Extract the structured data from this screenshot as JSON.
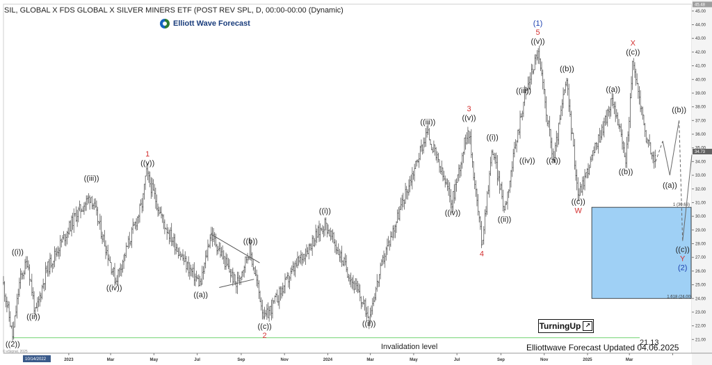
{
  "header": {
    "title": "SIL, GLOBAL X FDS GLOBAL X SILVER MINERS ETF (POST REV SPL, D, 00:00-00:00 (Dynamic)",
    "logo_text": "Elliott Wave Forecast"
  },
  "footer": {
    "updated": "Elliottwave Forecast Updated 04.06.2025",
    "brand": "TurningUp",
    "invalidation_label": "Invalidation level",
    "invalidation_value": "21.13",
    "copyright": "© eSignal, 2025",
    "cursor_date": "10/14/2022"
  },
  "chart_data": {
    "type": "candlestick",
    "title": "SIL, GLOBAL X FDS GLOBAL X SILVER MINERS ETF (POST REV SPL, D, 00:00-00:00 (Dynamic)",
    "ylim": [
      20.0,
      45.5
    ],
    "y_ticks": [
      21.0,
      22.0,
      23.0,
      24.0,
      25.0,
      26.0,
      27.0,
      28.0,
      29.0,
      30.0,
      31.0,
      32.0,
      33.0,
      34.0,
      35.0,
      36.0,
      37.0,
      38.0,
      39.0,
      40.0,
      41.0,
      42.0,
      43.0,
      44.0,
      45.0
    ],
    "last_price": "34.73",
    "top_price": "45.48",
    "x_ticks": [
      {
        "date": "2023-01-01",
        "label": "2023"
      },
      {
        "date": "2023-03-01",
        "label": "Mar"
      },
      {
        "date": "2023-05-01",
        "label": "May"
      },
      {
        "date": "2023-07-01",
        "label": "Jul"
      },
      {
        "date": "2023-09-01",
        "label": "Sep"
      },
      {
        "date": "2023-11-01",
        "label": "Nov"
      },
      {
        "date": "2024-01-01",
        "label": "2024"
      },
      {
        "date": "2024-03-01",
        "label": "Mar"
      },
      {
        "date": "2024-05-01",
        "label": "May"
      },
      {
        "date": "2024-07-01",
        "label": "Jul"
      },
      {
        "date": "2024-09-01",
        "label": "Sep"
      },
      {
        "date": "2024-11-01",
        "label": "Nov"
      },
      {
        "date": "2025-01-01",
        "label": "2025"
      },
      {
        "date": "2025-03-01",
        "label": "Mar"
      },
      {
        "date": "2025-05-01",
        "label": ""
      }
    ],
    "x_range": [
      "2022-10-01",
      "2025-05-28"
    ],
    "price_path": [
      [
        "2022-10-01",
        25.0
      ],
      [
        "2022-10-14",
        21.2
      ],
      [
        "2022-10-24",
        25.3
      ],
      [
        "2022-11-04",
        26.8
      ],
      [
        "2022-11-15",
        22.8
      ],
      [
        "2022-11-30",
        26.0
      ],
      [
        "2023-01-10",
        30.0
      ],
      [
        "2023-02-01",
        31.5
      ],
      [
        "2023-03-08",
        25.3
      ],
      [
        "2023-04-15",
        31.0
      ],
      [
        "2023-04-20",
        33.2
      ],
      [
        "2023-05-15",
        29.5
      ],
      [
        "2023-06-15",
        26.5
      ],
      [
        "2023-07-06",
        25.0
      ],
      [
        "2023-07-20",
        28.8
      ],
      [
        "2023-08-25",
        25.0
      ],
      [
        "2023-09-13",
        27.6
      ],
      [
        "2023-10-04",
        22.5
      ],
      [
        "2023-11-22",
        26.8
      ],
      [
        "2023-12-28",
        29.5
      ],
      [
        "2024-02-28",
        22.7
      ],
      [
        "2024-03-20",
        27.0
      ],
      [
        "2024-04-12",
        30.5
      ],
      [
        "2024-05-20",
        36.2
      ],
      [
        "2024-06-24",
        31.0
      ],
      [
        "2024-07-17",
        36.6
      ],
      [
        "2024-08-05",
        28.0
      ],
      [
        "2024-08-20",
        35.0
      ],
      [
        "2024-09-06",
        30.5
      ],
      [
        "2024-10-03",
        38.5
      ],
      [
        "2024-10-23",
        42.1
      ],
      [
        "2024-11-14",
        34.0
      ],
      [
        "2024-12-02",
        40.0
      ],
      [
        "2024-12-19",
        31.5
      ],
      [
        "2025-02-06",
        38.6
      ],
      [
        "2025-02-24",
        34.0
      ],
      [
        "2025-03-06",
        41.3
      ],
      [
        "2025-03-26",
        35.4
      ],
      [
        "2025-04-07",
        34.0
      ]
    ],
    "projection": [
      [
        "2025-04-07",
        34.0
      ],
      [
        "2025-04-17",
        35.5
      ],
      [
        "2025-04-27",
        33.0
      ],
      [
        "2025-05-10",
        37.0
      ],
      [
        "2025-05-15",
        28.2
      ],
      [
        "2025-05-28",
        34.5
      ]
    ],
    "triangle": [
      [
        [
          "2023-07-20",
          28.7
        ],
        [
          "2023-09-27",
          26.6
        ]
      ],
      [
        [
          "2023-08-01",
          24.8
        ],
        [
          "2023-09-19",
          25.4
        ]
      ]
    ],
    "target_box": {
      "x_start": "2025-01-07",
      "x_end": "2025-05-27",
      "y_top": 30.66,
      "y_bottom": 24.0,
      "label_top": "1 (30.66)",
      "label_bottom": "1.618 (24.00)",
      "color": "#9fd0f5"
    },
    "invalidation_line": {
      "value": 21.13,
      "color": "#6fd36f"
    },
    "wave_labels": [
      {
        "date": "2022-10-14",
        "price": 21.2,
        "lines": [
          {
            "t": "((2))",
            "c": "#222222"
          }
        ],
        "pos": "below"
      },
      {
        "date": "2022-10-21",
        "price": 26.9,
        "lines": [
          {
            "t": "((i))",
            "c": "#222222"
          }
        ],
        "pos": "above"
      },
      {
        "date": "2022-11-12",
        "price": 23.2,
        "lines": [
          {
            "t": "((ii))",
            "c": "#222222"
          }
        ],
        "pos": "below"
      },
      {
        "date": "2023-02-02",
        "price": 32.3,
        "lines": [
          {
            "t": "((iii))",
            "c": "#222222"
          }
        ],
        "pos": "above"
      },
      {
        "date": "2023-03-06",
        "price": 25.3,
        "lines": [
          {
            "t": "((iv))",
            "c": "#222222"
          }
        ],
        "pos": "below"
      },
      {
        "date": "2023-04-22",
        "price": 33.4,
        "lines": [
          {
            "t": "1",
            "c": "#d32f2f"
          },
          {
            "t": "((v))",
            "c": "#222222"
          }
        ],
        "pos": "above"
      },
      {
        "date": "2023-07-06",
        "price": 24.8,
        "lines": [
          {
            "t": "((a))",
            "c": "#222222"
          }
        ],
        "pos": "below"
      },
      {
        "date": "2023-09-14",
        "price": 27.7,
        "lines": [
          {
            "t": "((b))",
            "c": "#222222"
          }
        ],
        "pos": "above"
      },
      {
        "date": "2023-10-04",
        "price": 22.5,
        "lines": [
          {
            "t": "((c))",
            "c": "#222222"
          },
          {
            "t": "2",
            "c": "#d32f2f"
          }
        ],
        "pos": "below"
      },
      {
        "date": "2023-12-28",
        "price": 29.9,
        "lines": [
          {
            "t": "((i))",
            "c": "#222222"
          }
        ],
        "pos": "above"
      },
      {
        "date": "2024-02-28",
        "price": 22.7,
        "lines": [
          {
            "t": "((ii))",
            "c": "#222222"
          }
        ],
        "pos": "below"
      },
      {
        "date": "2024-05-21",
        "price": 36.4,
        "lines": [
          {
            "t": "((iii))",
            "c": "#222222"
          }
        ],
        "pos": "above"
      },
      {
        "date": "2024-06-25",
        "price": 30.8,
        "lines": [
          {
            "t": "((iv))",
            "c": "#222222"
          }
        ],
        "pos": "below"
      },
      {
        "date": "2024-07-18",
        "price": 36.7,
        "lines": [
          {
            "t": "3",
            "c": "#d32f2f"
          },
          {
            "t": "((v))",
            "c": "#222222"
          }
        ],
        "pos": "above"
      },
      {
        "date": "2024-08-05",
        "price": 27.8,
        "lines": [
          {
            "t": "4",
            "c": "#d32f2f"
          }
        ],
        "pos": "below"
      },
      {
        "date": "2024-08-20",
        "price": 35.3,
        "lines": [
          {
            "t": "((i))",
            "c": "#222222"
          }
        ],
        "pos": "above"
      },
      {
        "date": "2024-09-06",
        "price": 30.3,
        "lines": [
          {
            "t": "((ii))",
            "c": "#222222"
          }
        ],
        "pos": "below"
      },
      {
        "date": "2024-10-03",
        "price": 38.7,
        "lines": [
          {
            "t": "((iii))",
            "c": "#222222"
          }
        ],
        "pos": "above"
      },
      {
        "date": "2024-10-08",
        "price": 34.6,
        "lines": [
          {
            "t": "((iv))",
            "c": "#222222"
          }
        ],
        "pos": "below"
      },
      {
        "date": "2024-10-23",
        "price": 42.3,
        "lines": [
          {
            "t": "(1)",
            "c": "#1a3fb0"
          },
          {
            "t": "5",
            "c": "#d32f2f"
          },
          {
            "t": "((v))",
            "c": "#222222"
          }
        ],
        "pos": "above"
      },
      {
        "date": "2024-11-14",
        "price": 34.6,
        "lines": [
          {
            "t": "((a))",
            "c": "#222222"
          }
        ],
        "pos": "below"
      },
      {
        "date": "2024-12-03",
        "price": 40.3,
        "lines": [
          {
            "t": "((b))",
            "c": "#222222"
          }
        ],
        "pos": "above"
      },
      {
        "date": "2024-12-19",
        "price": 31.6,
        "lines": [
          {
            "t": "((c))",
            "c": "#222222"
          },
          {
            "t": "W",
            "c": "#d32f2f"
          }
        ],
        "pos": "below"
      },
      {
        "date": "2025-02-06",
        "price": 38.8,
        "lines": [
          {
            "t": "((a))",
            "c": "#222222"
          }
        ],
        "pos": "above"
      },
      {
        "date": "2025-02-24",
        "price": 33.8,
        "lines": [
          {
            "t": "((b))",
            "c": "#222222"
          }
        ],
        "pos": "below"
      },
      {
        "date": "2025-03-06",
        "price": 41.5,
        "lines": [
          {
            "t": "X",
            "c": "#d32f2f"
          },
          {
            "t": "((c))",
            "c": "#222222"
          }
        ],
        "pos": "above"
      },
      {
        "date": "2025-04-27",
        "price": 32.8,
        "lines": [
          {
            "t": "((a))",
            "c": "#222222"
          }
        ],
        "pos": "below"
      },
      {
        "date": "2025-05-10",
        "price": 37.3,
        "lines": [
          {
            "t": "((b))",
            "c": "#222222"
          }
        ],
        "pos": "above"
      },
      {
        "date": "2025-05-15",
        "price": 28.1,
        "lines": [
          {
            "t": "((c))",
            "c": "#222222"
          },
          {
            "t": "Y",
            "c": "#d32f2f"
          },
          {
            "t": "(2)",
            "c": "#1a3fb0"
          }
        ],
        "pos": "below"
      }
    ],
    "colors": {
      "candles": "#555555",
      "projection": "#666666",
      "triangle": "#555555"
    }
  }
}
